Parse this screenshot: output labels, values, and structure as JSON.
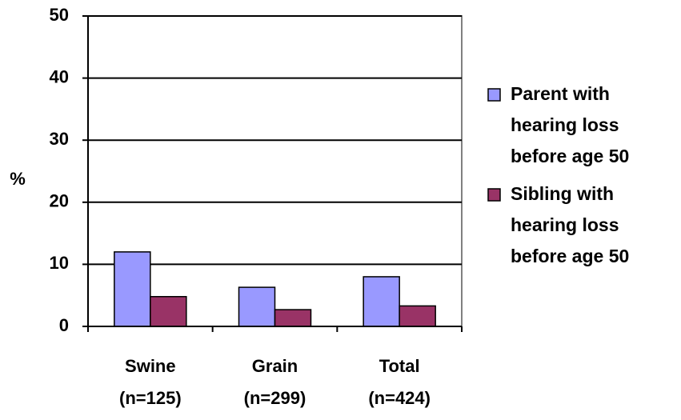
{
  "chart_data": {
    "type": "bar",
    "categories": [
      "Swine\n(n=125)",
      "Grain\n(n=299)",
      "Total\n(n=424)"
    ],
    "series": [
      {
        "name": "Parent with\nhearing loss\nbefore age 50",
        "color": "#9999ff",
        "values": [
          12,
          6.3,
          8
        ]
      },
      {
        "name": "Sibling with\nhearing loss\nbefore age 50",
        "color": "#993366",
        "values": [
          4.8,
          2.7,
          3.3
        ]
      }
    ],
    "y_label": "%",
    "ylim": [
      0,
      50
    ],
    "yticks": [
      0,
      10,
      20,
      30,
      40,
      50
    ],
    "grid": true,
    "legend": "right"
  }
}
